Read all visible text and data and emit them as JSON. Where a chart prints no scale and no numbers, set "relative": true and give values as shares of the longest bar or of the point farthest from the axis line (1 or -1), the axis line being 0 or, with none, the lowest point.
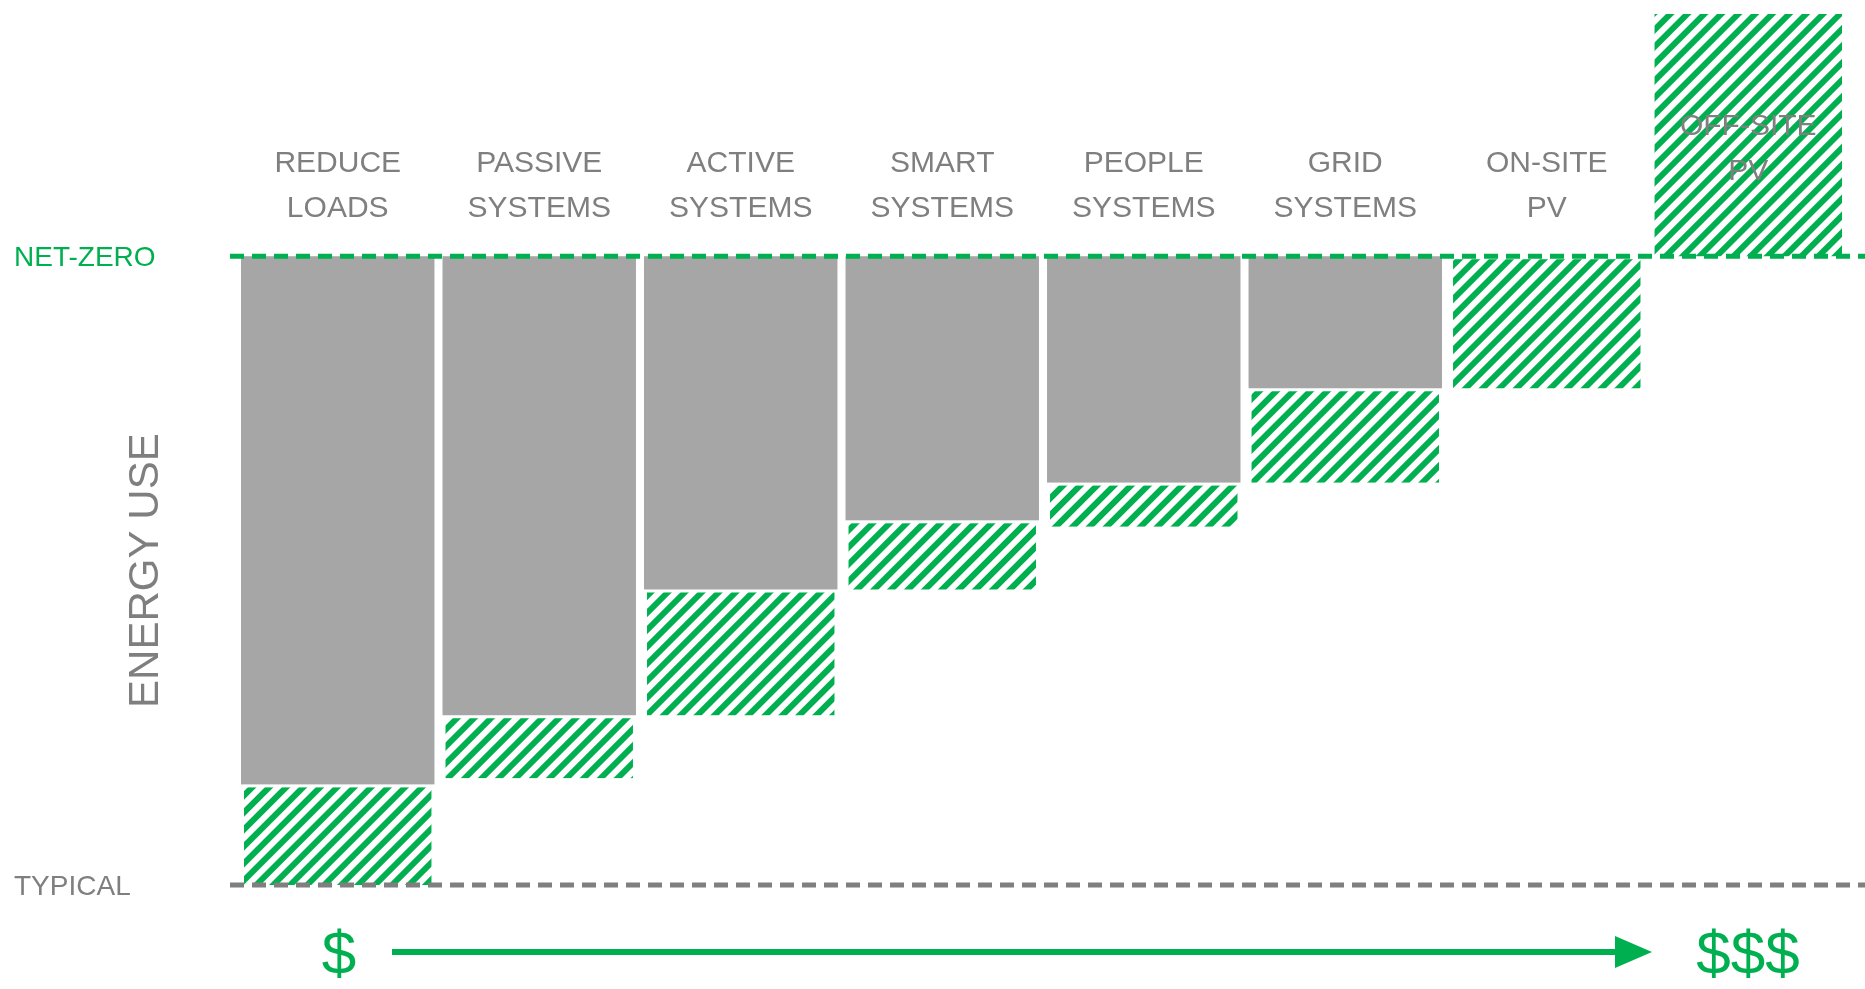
{
  "chart_data": {
    "type": "bar",
    "relative": true,
    "stacked": true,
    "tick_labels": "x",
    "ylabel": "ENERGY USE",
    "categories": [
      "REDUCE LOADS",
      "PASSIVE SYSTEMS",
      "ACTIVE SYSTEMS",
      "SMART SYSTEMS",
      "PEOPLE SYSTEMS",
      "GRID SYSTEMS",
      "ON-SITE PV",
      "OFF-SITE PV"
    ],
    "series": [
      {
        "color": "#a6a6a6",
        "values": [
          -0.84,
          -0.73,
          -0.53,
          -0.42,
          -0.36,
          -0.21,
          null,
          null
        ]
      },
      {
        "color": "#00b050",
        "values": [
          -0.16,
          -0.1,
          -0.2,
          -0.11,
          -0.07,
          -0.15,
          -0.21,
          0.39
        ]
      }
    ],
    "ref_lines": [
      {
        "axis": "y",
        "value": 0,
        "label": "NET-ZERO",
        "color": "#00b050",
        "line_style": "dashed"
      },
      {
        "axis": "y",
        "value": -1,
        "label": "TYPICAL",
        "color": "#7f7f7f",
        "line_style": "dashed"
      }
    ],
    "annotations": [
      "$",
      "$$$"
    ]
  }
}
